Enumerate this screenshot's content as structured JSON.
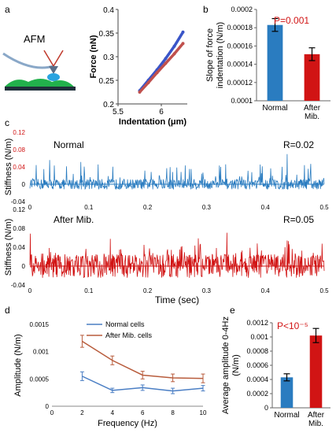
{
  "panel_labels": {
    "a": "a",
    "b": "b",
    "c": "c",
    "d": "d",
    "e": "e"
  },
  "afm_label": "AFM",
  "chart_data": [
    {
      "panel": "a",
      "type": "scatter",
      "xlabel": "Indentation (μm)",
      "ylabel": "Force (nN)",
      "xlim": [
        5.5,
        6.3
      ],
      "ylim": [
        0.2,
        0.4
      ],
      "xticks": [
        "5.5",
        "6"
      ],
      "yticks": [
        "0.2",
        "0.25",
        "0.3",
        "0.35",
        "0.4"
      ],
      "series": [
        {
          "color": "#3a55c8",
          "x": [
            5.75,
            5.85,
            5.95,
            6.05,
            6.15,
            6.25
          ],
          "y": [
            0.228,
            0.25,
            0.272,
            0.296,
            0.322,
            0.352
          ]
        },
        {
          "color": "#c0504d",
          "x": [
            5.75,
            5.85,
            5.95,
            6.05,
            6.15,
            6.25
          ],
          "y": [
            0.225,
            0.245,
            0.266,
            0.286,
            0.306,
            0.328
          ]
        }
      ]
    },
    {
      "panel": "b",
      "type": "bar",
      "ylabel": "Slope of force indentation (N/m)",
      "ylim": [
        0.0001,
        0.0002
      ],
      "yticks": [
        "0.0001",
        "0.00012",
        "0.00014",
        "0.00016",
        "0.00018",
        "0.0002"
      ],
      "categories": [
        "Normal",
        "After Mib."
      ],
      "values": [
        0.000183,
        0.000151
      ],
      "errors": [
        7e-06,
        7e-06
      ],
      "colors": [
        "#2a7cc0",
        "#d11414"
      ],
      "annotation": "P=0.001"
    },
    {
      "panel": "c-top",
      "type": "line",
      "ylabel": "Stiffness (N/m)",
      "title": "Normal",
      "annotation": "R=0.02",
      "xlim": [
        0,
        0.5
      ],
      "ylim": [
        -0.04,
        0.12
      ],
      "xticks": [
        "0",
        "0.1",
        "0.2",
        "0.3",
        "0.4",
        "0.5"
      ],
      "yticks": [
        "-0.04",
        "0",
        "0.04",
        "0.08",
        "0.12"
      ],
      "color": "#2a7cc0",
      "baseline_noise": 0.012,
      "spike_rate": 0.09,
      "spike_max": 0.08
    },
    {
      "panel": "c-bottom",
      "type": "line",
      "ylabel": "Stiffness (N/m)",
      "title": "After Mib.",
      "annotation": "R=0.05",
      "xlabel": "Time (sec)",
      "xlim": [
        0,
        0.5
      ],
      "ylim": [
        -0.04,
        0.12
      ],
      "xticks": [
        "0",
        "0.1",
        "0.2",
        "0.3",
        "0.4",
        "0.5"
      ],
      "yticks": [
        "-0.04",
        "0",
        "0.04",
        "0.08",
        "0.12"
      ],
      "color": "#d11414",
      "baseline_noise": 0.025,
      "spike_rate": 0.14,
      "spike_max": 0.08
    },
    {
      "panel": "d",
      "type": "line",
      "xlabel": "Frequency (Hz)",
      "ylabel": "Amplitude (N/m)",
      "xlim": [
        0,
        10
      ],
      "ylim": [
        0,
        0.0015
      ],
      "xticks": [
        "0",
        "2",
        "4",
        "6",
        "8",
        "10"
      ],
      "yticks": [
        "0",
        "0.0005",
        "0.001",
        "0.0015"
      ],
      "x": [
        2,
        4,
        6,
        8,
        10
      ],
      "series": [
        {
          "name": "Normal cells",
          "color": "#4a7ec4",
          "values": [
            0.00055,
            0.00029,
            0.00034,
            0.00028,
            0.00033
          ],
          "errors": [
            8e-05,
            4e-05,
            5e-05,
            5e-05,
            5e-05
          ]
        },
        {
          "name": "After Mib. cells",
          "color": "#b85c3c",
          "values": [
            0.00119,
            0.00084,
            0.00057,
            0.00052,
            0.00051
          ],
          "errors": [
            0.00011,
            8e-05,
            7e-05,
            7e-05,
            8e-05
          ]
        }
      ]
    },
    {
      "panel": "e",
      "type": "bar",
      "ylabel": "Average amplitude 0-4Hz (N/m)",
      "ylim": [
        0,
        0.0012
      ],
      "yticks": [
        "0",
        "0.0002",
        "0.0004",
        "0.0006",
        "0.0008",
        "0.001",
        "0.0012"
      ],
      "categories": [
        "Normal",
        "After Mib."
      ],
      "values": [
        0.00043,
        0.00102
      ],
      "errors": [
        5e-05,
        0.0001
      ],
      "colors": [
        "#2a7cc0",
        "#d11414"
      ],
      "annotation": "P<10⁻⁵"
    }
  ]
}
